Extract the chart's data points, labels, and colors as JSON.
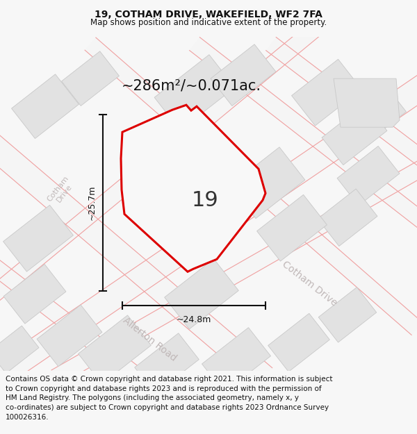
{
  "title_line1": "19, COTHAM DRIVE, WAKEFIELD, WF2 7FA",
  "title_line2": "Map shows position and indicative extent of the property.",
  "area_text": "~286m²/~0.071ac.",
  "label_19": "19",
  "dim_vertical": "~25.7m",
  "dim_horizontal": "~24.8m",
  "road_label_cotham_drive": "Cotham Drive",
  "road_label_cotham_ave": "Cotham\nDrive",
  "road_label_allerton": "Allerton Road",
  "footer_text": "Contains OS data © Crown copyright and database right 2021. This information is subject to Crown copyright and database rights 2023 and is reproduced with the permission of HM Land Registry. The polygons (including the associated geometry, namely x, y co-ordinates) are subject to Crown copyright and database rights 2023 Ordnance Survey 100026316.",
  "bg_color": "#f7f7f7",
  "map_bg": "#f0f0f0",
  "block_color": "#e2e2e2",
  "block_edge": "#c8c8c8",
  "road_fill_color": "#f5f5f5",
  "road_line_color": "#f0a0a0",
  "road_label_color": "#c0b8b8",
  "plot_outline_color": "#dd0000",
  "plot_fill_color": "#f8f8f8",
  "dim_line_color": "#111111",
  "title_color": "#111111",
  "footer_color": "#111111",
  "footer_fontsize": 7.5,
  "title_fontsize1": 10,
  "title_fontsize2": 8.5
}
